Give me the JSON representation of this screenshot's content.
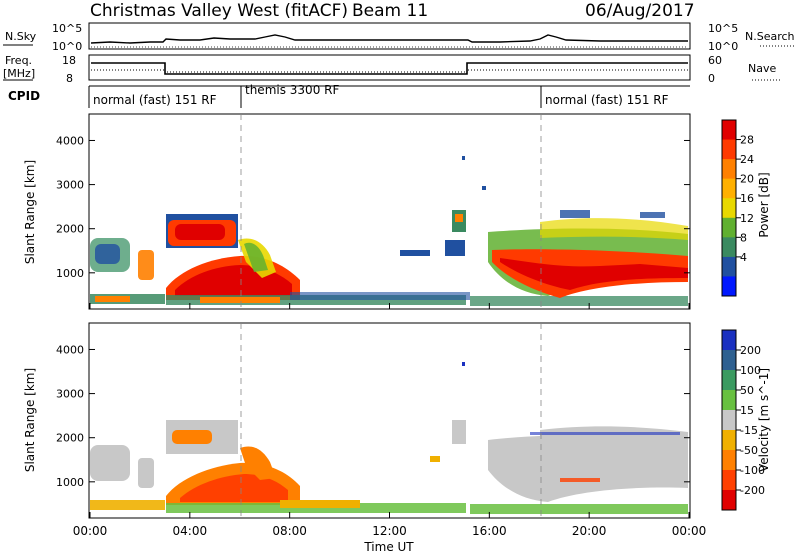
{
  "header": {
    "title": "Christmas Valley West (fitACF)",
    "beam": "Beam 11",
    "date": "06/Aug/2017"
  },
  "top_panels": {
    "nsky_label": "N.Sky",
    "nsearch_label": "N.Search",
    "nsky_ticks": [
      "10^5",
      "10^0"
    ],
    "nsearch_ticks": [
      "10^5",
      "10^0"
    ],
    "freq_label_1": "Freq.",
    "freq_label_2": "[MHz]",
    "freq_ticks": [
      "18",
      "8"
    ],
    "nave_label": "Nave",
    "nave_ticks": [
      "60",
      "0"
    ],
    "cpid_label": "CPID"
  },
  "cpid_segments": [
    {
      "start_hour": 0,
      "label": "normal (fast) 151 RF"
    },
    {
      "start_hour": 6,
      "label": "themis 3300 RF"
    },
    {
      "start_hour": 18,
      "label": "normal (fast) 151 RF"
    }
  ],
  "chart_data": [
    {
      "type": "heatmap",
      "parameter": "power",
      "ylabel": "Slant Range [km]",
      "ylim": [
        180,
        4600
      ],
      "yticks": [
        1000,
        2000,
        3000,
        4000
      ],
      "xlim": [
        0,
        24
      ],
      "colorbar_label": "Power [dB]",
      "colorbar_ticks": [
        "28",
        "24",
        "20",
        "16",
        "12",
        "8",
        "4"
      ],
      "colorbar_colors": [
        "#e00000",
        "#ff3a00",
        "#ff8000",
        "#ffb000",
        "#e8d800",
        "#60b030",
        "#3a8a60",
        "#2050a0",
        "#0018ff"
      ]
    },
    {
      "type": "heatmap",
      "parameter": "velocity",
      "ylabel": "Slant Range [km]",
      "ylim": [
        180,
        4600
      ],
      "yticks": [
        1000,
        2000,
        3000,
        4000
      ],
      "xlim": [
        0,
        24
      ],
      "colorbar_label": "Velocity [m s^-1]",
      "colorbar_ticks": [
        "200",
        "100",
        "50",
        "15",
        "-15",
        "-50",
        "-100",
        "-200"
      ],
      "colorbar_colors": [
        "#1a30c0",
        "#2e6090",
        "#3a9a60",
        "#68c040",
        "#c8c8c8",
        "#f0b000",
        "#ff8000",
        "#ff4000",
        "#e00000"
      ]
    }
  ],
  "xaxis": {
    "ticks": [
      "00:00",
      "04:00",
      "08:00",
      "12:00",
      "16:00",
      "20:00",
      "00:00"
    ],
    "xlabel": "Time UT"
  }
}
